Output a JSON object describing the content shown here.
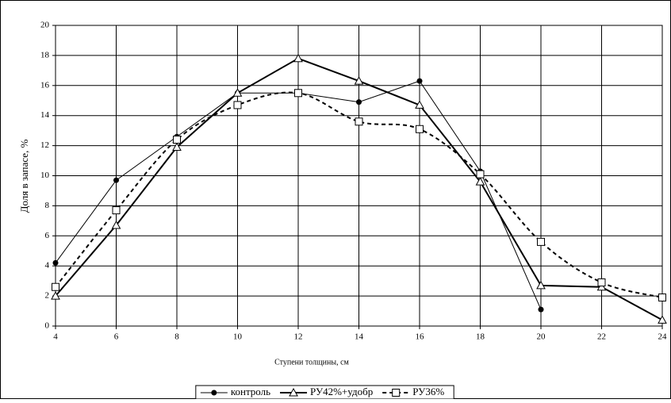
{
  "chart_data": {
    "type": "line",
    "x_label": "Ступени толщины, см",
    "y_label": "Доля в запасе, %",
    "x": [
      4,
      6,
      8,
      10,
      12,
      14,
      16,
      18,
      20,
      22,
      24
    ],
    "series": [
      {
        "name": "контроль",
        "color": "#000000",
        "marker": "circle",
        "line_width": 1,
        "line_style": "solid",
        "values": [
          4.2,
          9.7,
          12.6,
          15.5,
          15.5,
          14.9,
          16.3,
          10.3,
          1.1,
          null,
          null
        ]
      },
      {
        "name": "РУ42%+удобр",
        "color": "#000000",
        "marker": "triangle",
        "line_width": 2,
        "line_style": "solid",
        "values": [
          2.0,
          6.7,
          11.9,
          15.5,
          17.8,
          16.3,
          14.7,
          9.6,
          2.7,
          2.6,
          0.4
        ]
      },
      {
        "name": "РУ36%",
        "color": "#000000",
        "marker": "square",
        "line_width": 2,
        "line_style": "dashed",
        "values": [
          2.6,
          7.7,
          12.4,
          14.7,
          15.5,
          13.6,
          13.1,
          10.1,
          5.6,
          2.9,
          1.9
        ]
      }
    ],
    "xlim": [
      4,
      24
    ],
    "xticks": [
      4,
      6,
      8,
      10,
      12,
      14,
      16,
      18,
      20,
      22,
      24
    ],
    "ylim": [
      0,
      20
    ],
    "yticks": [
      0,
      2,
      4,
      6,
      8,
      10,
      12,
      14,
      16,
      18,
      20
    ],
    "grid": true,
    "legend": "bottom"
  }
}
